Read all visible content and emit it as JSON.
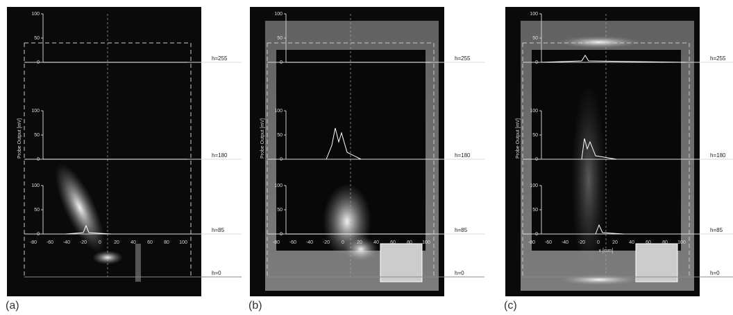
{
  "y_axis_label": "Probe Output [mV]",
  "y_ticks": [
    "100",
    "50",
    "0"
  ],
  "x_ticks": [
    "-80",
    "-60",
    "-40",
    "-20",
    "0",
    "20",
    "40",
    "60",
    "80",
    "100"
  ],
  "panels": [
    {
      "label": "(a)",
      "heights": [
        "h=255",
        "h=180",
        "h=85",
        "h=0"
      ]
    },
    {
      "label": "(b)",
      "heights": [
        "h=255",
        "h=180",
        "h=85",
        "h=0"
      ]
    },
    {
      "label": "(c)",
      "heights": [
        "h=255",
        "h=180",
        "h=85",
        "h=0"
      ],
      "x_label": "x [mm]"
    }
  ]
}
